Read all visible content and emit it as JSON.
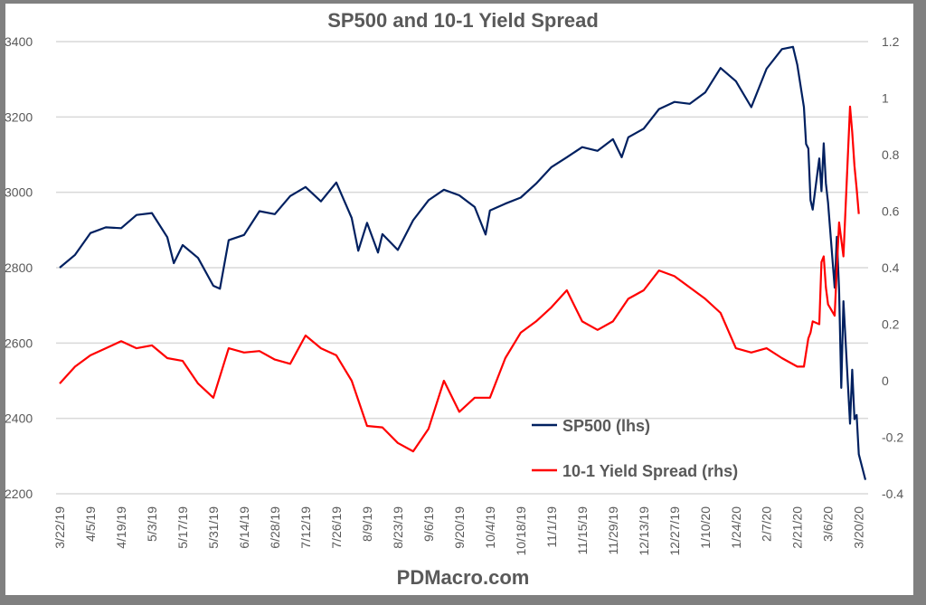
{
  "chart_data": {
    "type": "line",
    "title": "SP500 and 10-1 Yield Spread",
    "footer": "PDMacro.com",
    "y_left": {
      "range": [
        2200,
        3400
      ],
      "ticks": [
        "2200",
        "2400",
        "2600",
        "2800",
        "3000",
        "3200",
        "3400"
      ]
    },
    "y_right": {
      "range": [
        -0.4,
        1.2
      ],
      "ticks": [
        "-0.4",
        "-0.2",
        "0",
        "0.2",
        "0.4",
        "0.6",
        "0.8",
        "1",
        "1.2"
      ]
    },
    "x_range": [
      "2019-03-22",
      "2020-03-23"
    ],
    "x_ticks": [
      {
        "date": "2019-03-22",
        "label": "3/22/19"
      },
      {
        "date": "2019-04-05",
        "label": "4/5/19"
      },
      {
        "date": "2019-04-19",
        "label": "4/19/19"
      },
      {
        "date": "2019-05-03",
        "label": "5/3/19"
      },
      {
        "date": "2019-05-17",
        "label": "5/17/19"
      },
      {
        "date": "2019-05-31",
        "label": "5/31/19"
      },
      {
        "date": "2019-06-14",
        "label": "6/14/19"
      },
      {
        "date": "2019-06-28",
        "label": "6/28/19"
      },
      {
        "date": "2019-07-12",
        "label": "7/12/19"
      },
      {
        "date": "2019-07-26",
        "label": "7/26/19"
      },
      {
        "date": "2019-08-09",
        "label": "8/9/19"
      },
      {
        "date": "2019-08-23",
        "label": "8/23/19"
      },
      {
        "date": "2019-09-06",
        "label": "9/6/19"
      },
      {
        "date": "2019-09-20",
        "label": "9/20/19"
      },
      {
        "date": "2019-10-04",
        "label": "10/4/19"
      },
      {
        "date": "2019-10-18",
        "label": "10/18/19"
      },
      {
        "date": "2019-11-01",
        "label": "11/1/19"
      },
      {
        "date": "2019-11-15",
        "label": "11/15/19"
      },
      {
        "date": "2019-11-29",
        "label": "11/29/19"
      },
      {
        "date": "2019-12-13",
        "label": "12/13/19"
      },
      {
        "date": "2019-12-27",
        "label": "12/27/19"
      },
      {
        "date": "2020-01-10",
        "label": "1/10/20"
      },
      {
        "date": "2020-01-24",
        "label": "1/24/20"
      },
      {
        "date": "2020-02-07",
        "label": "2/7/20"
      },
      {
        "date": "2020-02-21",
        "label": "2/21/20"
      },
      {
        "date": "2020-03-06",
        "label": "3/6/20"
      },
      {
        "date": "2020-03-20",
        "label": "3/20/20"
      }
    ],
    "grid": true,
    "legend_position": "bottom-center",
    "series": [
      {
        "name": "SP500 (lhs)",
        "axis": "left",
        "color": "#002060",
        "points": [
          [
            "2019-03-22",
            2800
          ],
          [
            "2019-03-29",
            2834
          ],
          [
            "2019-04-05",
            2892
          ],
          [
            "2019-04-12",
            2907
          ],
          [
            "2019-04-19",
            2905
          ],
          [
            "2019-04-26",
            2940
          ],
          [
            "2019-05-03",
            2945
          ],
          [
            "2019-05-10",
            2881
          ],
          [
            "2019-05-13",
            2812
          ],
          [
            "2019-05-17",
            2860
          ],
          [
            "2019-05-24",
            2826
          ],
          [
            "2019-05-31",
            2752
          ],
          [
            "2019-06-03",
            2744
          ],
          [
            "2019-06-07",
            2873
          ],
          [
            "2019-06-14",
            2887
          ],
          [
            "2019-06-21",
            2950
          ],
          [
            "2019-06-28",
            2942
          ],
          [
            "2019-07-05",
            2990
          ],
          [
            "2019-07-12",
            3014
          ],
          [
            "2019-07-19",
            2976
          ],
          [
            "2019-07-26",
            3026
          ],
          [
            "2019-08-02",
            2932
          ],
          [
            "2019-08-05",
            2845
          ],
          [
            "2019-08-09",
            2919
          ],
          [
            "2019-08-14",
            2840
          ],
          [
            "2019-08-16",
            2889
          ],
          [
            "2019-08-23",
            2847
          ],
          [
            "2019-08-30",
            2926
          ],
          [
            "2019-09-06",
            2979
          ],
          [
            "2019-09-13",
            3007
          ],
          [
            "2019-09-20",
            2992
          ],
          [
            "2019-09-27",
            2961
          ],
          [
            "2019-10-02",
            2888
          ],
          [
            "2019-10-04",
            2952
          ],
          [
            "2019-10-11",
            2970
          ],
          [
            "2019-10-18",
            2986
          ],
          [
            "2019-10-25",
            3023
          ],
          [
            "2019-11-01",
            3067
          ],
          [
            "2019-11-08",
            3093
          ],
          [
            "2019-11-15",
            3120
          ],
          [
            "2019-11-22",
            3110
          ],
          [
            "2019-11-29",
            3141
          ],
          [
            "2019-12-03",
            3093
          ],
          [
            "2019-12-06",
            3146
          ],
          [
            "2019-12-13",
            3169
          ],
          [
            "2019-12-20",
            3221
          ],
          [
            "2019-12-27",
            3240
          ],
          [
            "2020-01-03",
            3235
          ],
          [
            "2020-01-10",
            3265
          ],
          [
            "2020-01-17",
            3330
          ],
          [
            "2020-01-24",
            3295
          ],
          [
            "2020-01-31",
            3226
          ],
          [
            "2020-02-07",
            3328
          ],
          [
            "2020-02-14",
            3380
          ],
          [
            "2020-02-19",
            3386
          ],
          [
            "2020-02-21",
            3338
          ],
          [
            "2020-02-24",
            3226
          ],
          [
            "2020-02-25",
            3128
          ],
          [
            "2020-02-26",
            3116
          ],
          [
            "2020-02-27",
            2979
          ],
          [
            "2020-02-28",
            2954
          ],
          [
            "2020-03-02",
            3090
          ],
          [
            "2020-03-03",
            3003
          ],
          [
            "2020-03-04",
            3130
          ],
          [
            "2020-03-05",
            3024
          ],
          [
            "2020-03-06",
            2972
          ],
          [
            "2020-03-09",
            2747
          ],
          [
            "2020-03-10",
            2882
          ],
          [
            "2020-03-11",
            2741
          ],
          [
            "2020-03-12",
            2481
          ],
          [
            "2020-03-13",
            2711
          ],
          [
            "2020-03-16",
            2386
          ],
          [
            "2020-03-17",
            2529
          ],
          [
            "2020-03-18",
            2398
          ],
          [
            "2020-03-19",
            2409
          ],
          [
            "2020-03-20",
            2305
          ],
          [
            "2020-03-23",
            2237
          ]
        ]
      },
      {
        "name": "10-1 Yield Spread (rhs)",
        "axis": "right",
        "color": "#ff0000",
        "points": [
          [
            "2019-03-22",
            -0.01
          ],
          [
            "2019-03-29",
            0.05
          ],
          [
            "2019-04-05",
            0.09
          ],
          [
            "2019-04-12",
            0.115
          ],
          [
            "2019-04-19",
            0.14
          ],
          [
            "2019-04-26",
            0.115
          ],
          [
            "2019-05-03",
            0.125
          ],
          [
            "2019-05-10",
            0.08
          ],
          [
            "2019-05-17",
            0.07
          ],
          [
            "2019-05-24",
            -0.01
          ],
          [
            "2019-05-31",
            -0.06
          ],
          [
            "2019-06-07",
            0.115
          ],
          [
            "2019-06-14",
            0.1
          ],
          [
            "2019-06-21",
            0.105
          ],
          [
            "2019-06-28",
            0.075
          ],
          [
            "2019-07-05",
            0.06
          ],
          [
            "2019-07-12",
            0.16
          ],
          [
            "2019-07-19",
            0.115
          ],
          [
            "2019-07-26",
            0.09
          ],
          [
            "2019-08-02",
            0.0
          ],
          [
            "2019-08-09",
            -0.16
          ],
          [
            "2019-08-16",
            -0.165
          ],
          [
            "2019-08-23",
            -0.22
          ],
          [
            "2019-08-30",
            -0.25
          ],
          [
            "2019-09-06",
            -0.17
          ],
          [
            "2019-09-13",
            0.0
          ],
          [
            "2019-09-20",
            -0.11
          ],
          [
            "2019-09-27",
            -0.06
          ],
          [
            "2019-10-04",
            -0.06
          ],
          [
            "2019-10-11",
            0.08
          ],
          [
            "2019-10-18",
            0.17
          ],
          [
            "2019-10-25",
            0.21
          ],
          [
            "2019-11-01",
            0.26
          ],
          [
            "2019-11-08",
            0.32
          ],
          [
            "2019-11-15",
            0.21
          ],
          [
            "2019-11-22",
            0.18
          ],
          [
            "2019-11-29",
            0.21
          ],
          [
            "2019-12-06",
            0.29
          ],
          [
            "2019-12-13",
            0.32
          ],
          [
            "2019-12-20",
            0.39
          ],
          [
            "2019-12-27",
            0.37
          ],
          [
            "2020-01-03",
            0.33
          ],
          [
            "2020-01-10",
            0.29
          ],
          [
            "2020-01-17",
            0.24
          ],
          [
            "2020-01-24",
            0.115
          ],
          [
            "2020-01-31",
            0.1
          ],
          [
            "2020-02-07",
            0.115
          ],
          [
            "2020-02-14",
            0.08
          ],
          [
            "2020-02-21",
            0.05
          ],
          [
            "2020-02-24",
            0.05
          ],
          [
            "2020-02-25",
            0.1
          ],
          [
            "2020-02-26",
            0.15
          ],
          [
            "2020-02-27",
            0.17
          ],
          [
            "2020-02-28",
            0.21
          ],
          [
            "2020-03-02",
            0.2
          ],
          [
            "2020-03-03",
            0.42
          ],
          [
            "2020-03-04",
            0.44
          ],
          [
            "2020-03-05",
            0.33
          ],
          [
            "2020-03-06",
            0.27
          ],
          [
            "2020-03-09",
            0.23
          ],
          [
            "2020-03-10",
            0.4
          ],
          [
            "2020-03-11",
            0.56
          ],
          [
            "2020-03-12",
            0.5
          ],
          [
            "2020-03-13",
            0.44
          ],
          [
            "2020-03-16",
            0.97
          ],
          [
            "2020-03-17",
            0.88
          ],
          [
            "2020-03-18",
            0.76
          ],
          [
            "2020-03-19",
            0.68
          ],
          [
            "2020-03-20",
            0.59
          ]
        ]
      }
    ]
  }
}
